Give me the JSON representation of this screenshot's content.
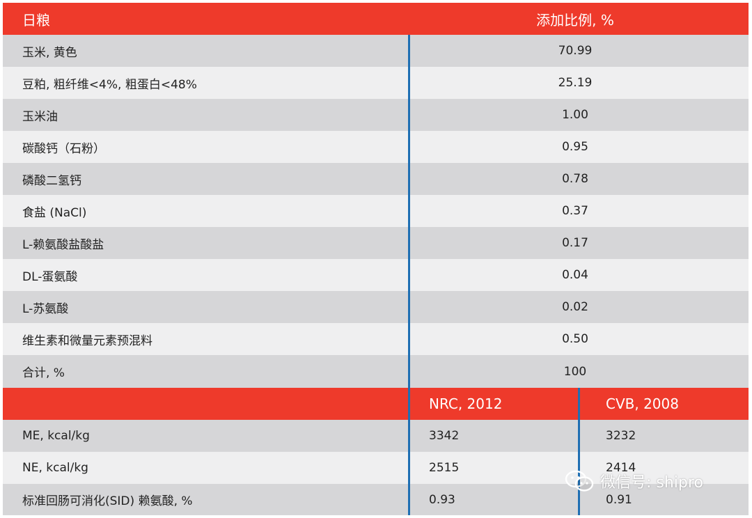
{
  "table": {
    "header": {
      "ingredient": "日粮",
      "ratio": "添加比例, %"
    },
    "rows": [
      {
        "name": "玉米, 黄色",
        "value": "70.99"
      },
      {
        "name": "豆粕, 粗纤维<4%, 粗蛋白<48%",
        "value": "25.19"
      },
      {
        "name": "玉米油",
        "value": "1.00"
      },
      {
        "name": "碳酸钙（石粉）",
        "value": "0.95"
      },
      {
        "name": "磷酸二氢钙",
        "value": "0.78"
      },
      {
        "name": "食盐 (NaCl)",
        "value": "0.37"
      },
      {
        "name": "L-赖氨酸盐酸盐",
        "value": "0.17"
      },
      {
        "name": "DL-蛋氨酸",
        "value": "0.04"
      },
      {
        "name": "L-苏氨酸",
        "value": "0.02"
      },
      {
        "name": "维生素和微量元素预混料",
        "value": "0.50"
      },
      {
        "name": "合计, %",
        "value": "100"
      }
    ],
    "nutrient_header": {
      "col1": "",
      "col2": "NRC, 2012",
      "col3": "CVB, 2008"
    },
    "nutrient_rows": [
      {
        "name": "ME, kcal/kg",
        "nrc": "3342",
        "cvb": "3232"
      },
      {
        "name": "NE, kcal/kg",
        "nrc": "2515",
        "cvb": "2414"
      },
      {
        "name": "标准回肠可消化(SID) 赖氨酸, %",
        "nrc": "0.93",
        "cvb": "0.91"
      }
    ]
  },
  "watermark": {
    "text": "微信号: shipro",
    "icon": "wechat-icon"
  },
  "colors": {
    "header_red": "#ee3a2b",
    "row_gray": "#d6d6d8",
    "row_light": "#efeff0",
    "divider_blue": "#1f6fb3"
  }
}
